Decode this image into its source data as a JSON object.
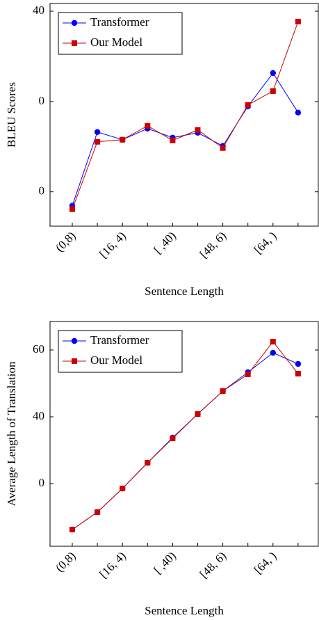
{
  "chart_data": [
    {
      "type": "line",
      "ylabel": "BLEU Scores",
      "xlabel": "Sentence Length",
      "categories": [
        "(0,8)",
        null,
        "[16, 4)",
        null,
        "[ ,40)",
        null,
        "[48, 6)",
        null,
        "[64, )",
        null
      ],
      "series": [
        {
          "name": "Transformer",
          "color": "#0000ff",
          "marker": "circle",
          "values": [
            18.46,
            26.62,
            25.77,
            27.0,
            26.0,
            26.54,
            25.08,
            29.46,
            33.15,
            28.77
          ]
        },
        {
          "name": "Our Model",
          "color": "#cc0000",
          "marker": "square",
          "values": [
            18.08,
            25.54,
            25.77,
            27.31,
            25.69,
            26.85,
            24.85,
            29.62,
            31.15,
            38.85
          ]
        }
      ],
      "ylim": [
        16.2,
        40.85
      ],
      "yticks": [
        {
          "value": 20,
          "label": "0"
        },
        {
          "value": 30,
          "label": "0"
        },
        40
      ],
      "legend": "upper left"
    },
    {
      "type": "line",
      "ylabel": "Average Length of Translation",
      "xlabel": "Sentence Length",
      "categories": [
        "(0,8)",
        null,
        "[16, 4)",
        null,
        "[ ,40)",
        null,
        "[48, 6)",
        null,
        "[64, )",
        null
      ],
      "series": [
        {
          "name": "Transformer",
          "color": "#0000ff",
          "marker": "circle",
          "values": [
            6.25,
            11.46,
            18.54,
            26.25,
            33.75,
            40.83,
            47.71,
            53.33,
            59.17,
            55.83
          ]
        },
        {
          "name": "Our Model",
          "color": "#cc0000",
          "marker": "square",
          "values": [
            6.25,
            11.46,
            18.54,
            26.25,
            33.54,
            40.83,
            47.71,
            52.71,
            62.5,
            52.92
          ]
        }
      ],
      "ylim": [
        1.25,
        68.54
      ],
      "yticks": [
        {
          "value": 20,
          "label": "0"
        },
        40,
        60
      ],
      "legend": "upper left"
    }
  ]
}
